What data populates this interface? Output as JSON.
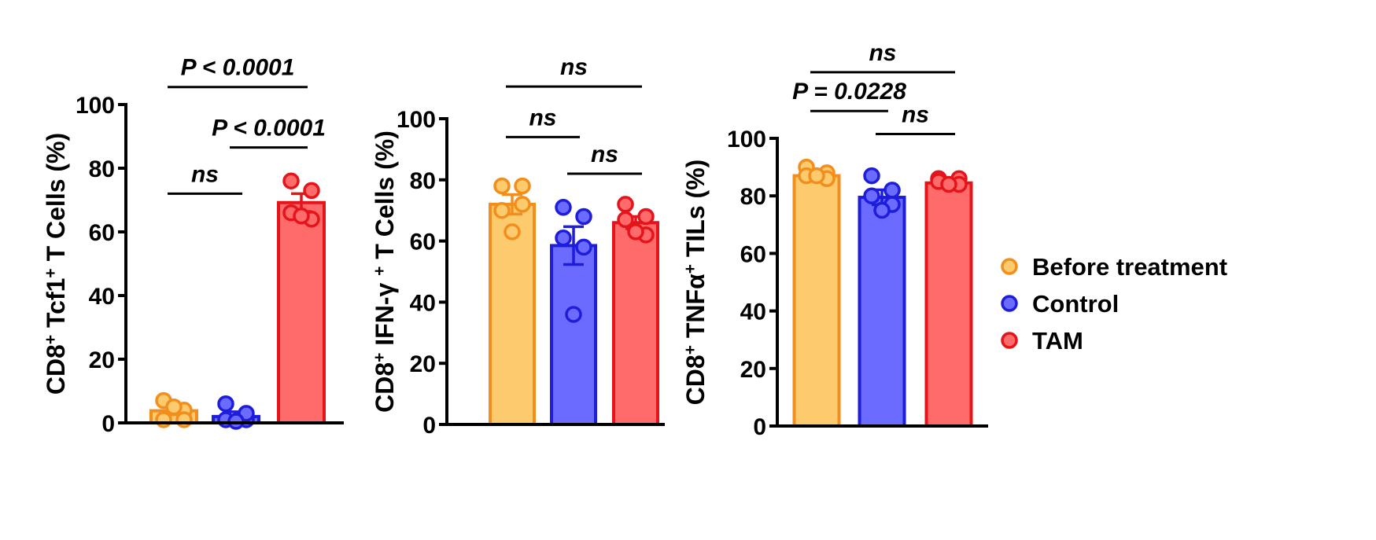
{
  "legend": [
    {
      "label": "Before treatment",
      "color": "#f28e1c",
      "fill": "#fdcb6e"
    },
    {
      "label": "Control",
      "color": "#1d1ddb",
      "fill": "#6b6bff"
    },
    {
      "label": "TAM",
      "color": "#e5141a",
      "fill": "#ff6b6b"
    }
  ],
  "chart_data": [
    {
      "type": "bar",
      "ylabel_parts": [
        "CD8",
        "+",
        " Tcf1",
        "+",
        " T Cells (%)"
      ],
      "ylim": [
        0,
        100
      ],
      "ticks": [
        0,
        20,
        40,
        60,
        80,
        100
      ],
      "tick_labels": [
        "0",
        "20",
        "40",
        "60",
        "80",
        "100"
      ],
      "categories": [
        "Before treatment",
        "Control",
        "TAM"
      ],
      "values": [
        3.8,
        2.0,
        69.2
      ],
      "sem": [
        1.2,
        1.5,
        2.8
      ],
      "points": [
        [
          7,
          4,
          1,
          1,
          5
        ],
        [
          6,
          1,
          1,
          3,
          0.5
        ],
        [
          76,
          73,
          66,
          64,
          65
        ]
      ],
      "comparisons": [
        {
          "a": 0,
          "b": 1,
          "label": "ns",
          "y": 72
        },
        {
          "a": 1,
          "b": 2,
          "label": "P < 0.0001",
          "y": 86.5
        },
        {
          "a": 0,
          "b": 2,
          "label": "P < 0.0001",
          "y": 105.5
        }
      ]
    },
    {
      "type": "bar",
      "ylabel_parts": [
        "CD8",
        "+",
        " IFN-γ ",
        "+",
        " T Cells (%)"
      ],
      "ylim": [
        0,
        100
      ],
      "ticks": [
        0,
        20,
        40,
        60,
        80,
        100
      ],
      "tick_labels": [
        "0",
        "20",
        "40",
        "60",
        "80",
        "100"
      ],
      "categories": [
        "Before treatment",
        "Control",
        "TAM"
      ],
      "values": [
        72,
        58.5,
        66
      ],
      "sem": [
        3.2,
        6.2,
        2.0
      ],
      "points": [
        [
          78,
          78,
          70,
          72,
          63
        ],
        [
          71,
          68,
          61,
          58,
          36
        ],
        [
          72,
          68,
          67,
          62,
          63
        ]
      ],
      "comparisons": [
        {
          "a": 0,
          "b": 1,
          "label": "ns",
          "y": 94
        },
        {
          "a": 1,
          "b": 2,
          "label": "ns",
          "y": 82
        },
        {
          "a": 0,
          "b": 2,
          "label": "ns",
          "y": 110.5
        }
      ]
    },
    {
      "type": "bar",
      "ylabel_parts": [
        "CD8",
        "+",
        " TNFα",
        "+",
        " TILs (%)"
      ],
      "ylim": [
        0,
        100
      ],
      "ticks": [
        0,
        20,
        40,
        60,
        80,
        100
      ],
      "tick_labels": [
        "0",
        "20",
        "40",
        "60",
        "80",
        "100"
      ],
      "categories": [
        "Before treatment",
        "Control",
        "TAM"
      ],
      "values": [
        87,
        79.5,
        84.5
      ],
      "sem": [
        1.2,
        2.6,
        1.0
      ],
      "points": [
        [
          90,
          88,
          87,
          86,
          87
        ],
        [
          87,
          82,
          80,
          77,
          75
        ],
        [
          86,
          86,
          85,
          84,
          84
        ]
      ],
      "comparisons": [
        {
          "a": 0,
          "b": 1,
          "label": "P = 0.0228",
          "y": 109.5
        },
        {
          "a": 1,
          "b": 2,
          "label": "ns",
          "y": 101.5
        },
        {
          "a": 0,
          "b": 2,
          "label": "ns",
          "y": 123
        }
      ]
    }
  ]
}
